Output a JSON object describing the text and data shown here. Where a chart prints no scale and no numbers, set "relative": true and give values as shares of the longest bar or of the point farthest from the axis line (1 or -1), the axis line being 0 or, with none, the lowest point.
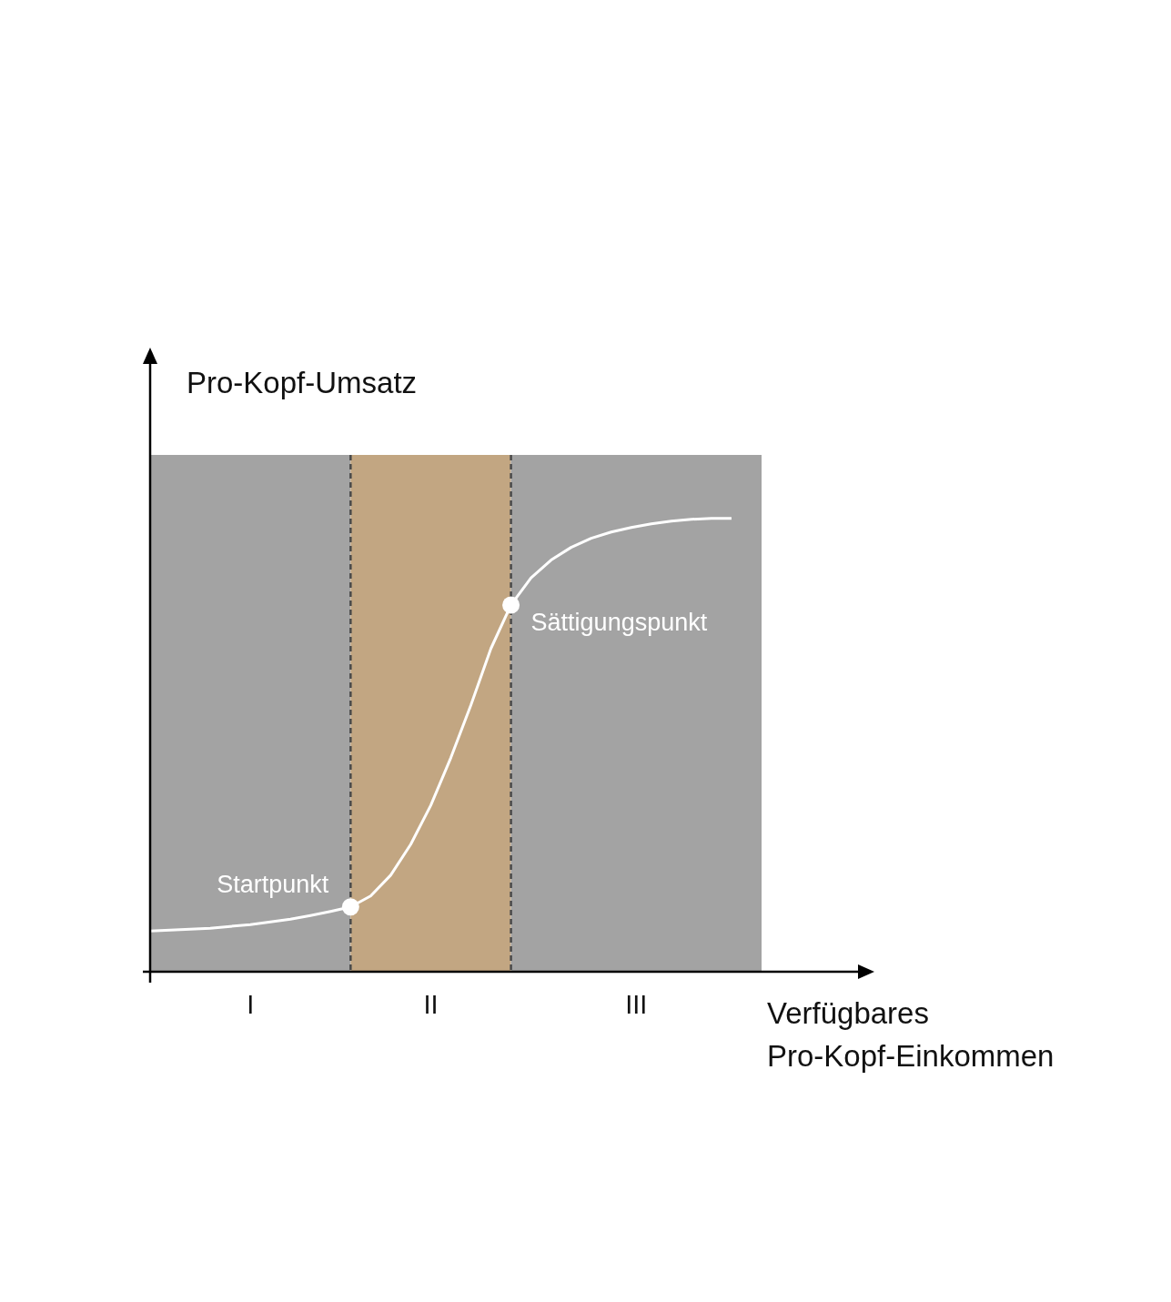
{
  "chart_data": {
    "type": "line",
    "relative": true,
    "xlabel": "Verfügbares\nPro-Kopf-Einkommen",
    "ylabel": "Pro-Kopf-Umsatz",
    "categories": [
      null,
      null,
      null,
      null,
      null,
      null,
      null,
      null,
      null,
      null,
      null,
      null,
      null,
      null,
      null,
      null,
      null,
      null,
      null,
      null,
      null,
      null,
      null,
      null,
      null,
      null,
      null,
      null,
      null,
      null
    ],
    "series": [
      {
        "color": "#ffffff",
        "values": [
          0.09,
          0.092,
          0.094,
          0.096,
          0.1,
          0.104,
          0.11,
          0.116,
          0.124,
          0.133,
          0.143,
          0.167,
          0.213,
          0.281,
          0.367,
          0.472,
          0.588,
          0.713,
          0.809,
          0.869,
          0.908,
          0.936,
          0.956,
          0.97,
          0.98,
          0.988,
          0.994,
          0.998,
          1,
          1
        ]
      }
    ],
    "annotations": [
      "Startpunkt",
      "Sättigungspunkt",
      "I",
      "II",
      "III"
    ]
  }
}
